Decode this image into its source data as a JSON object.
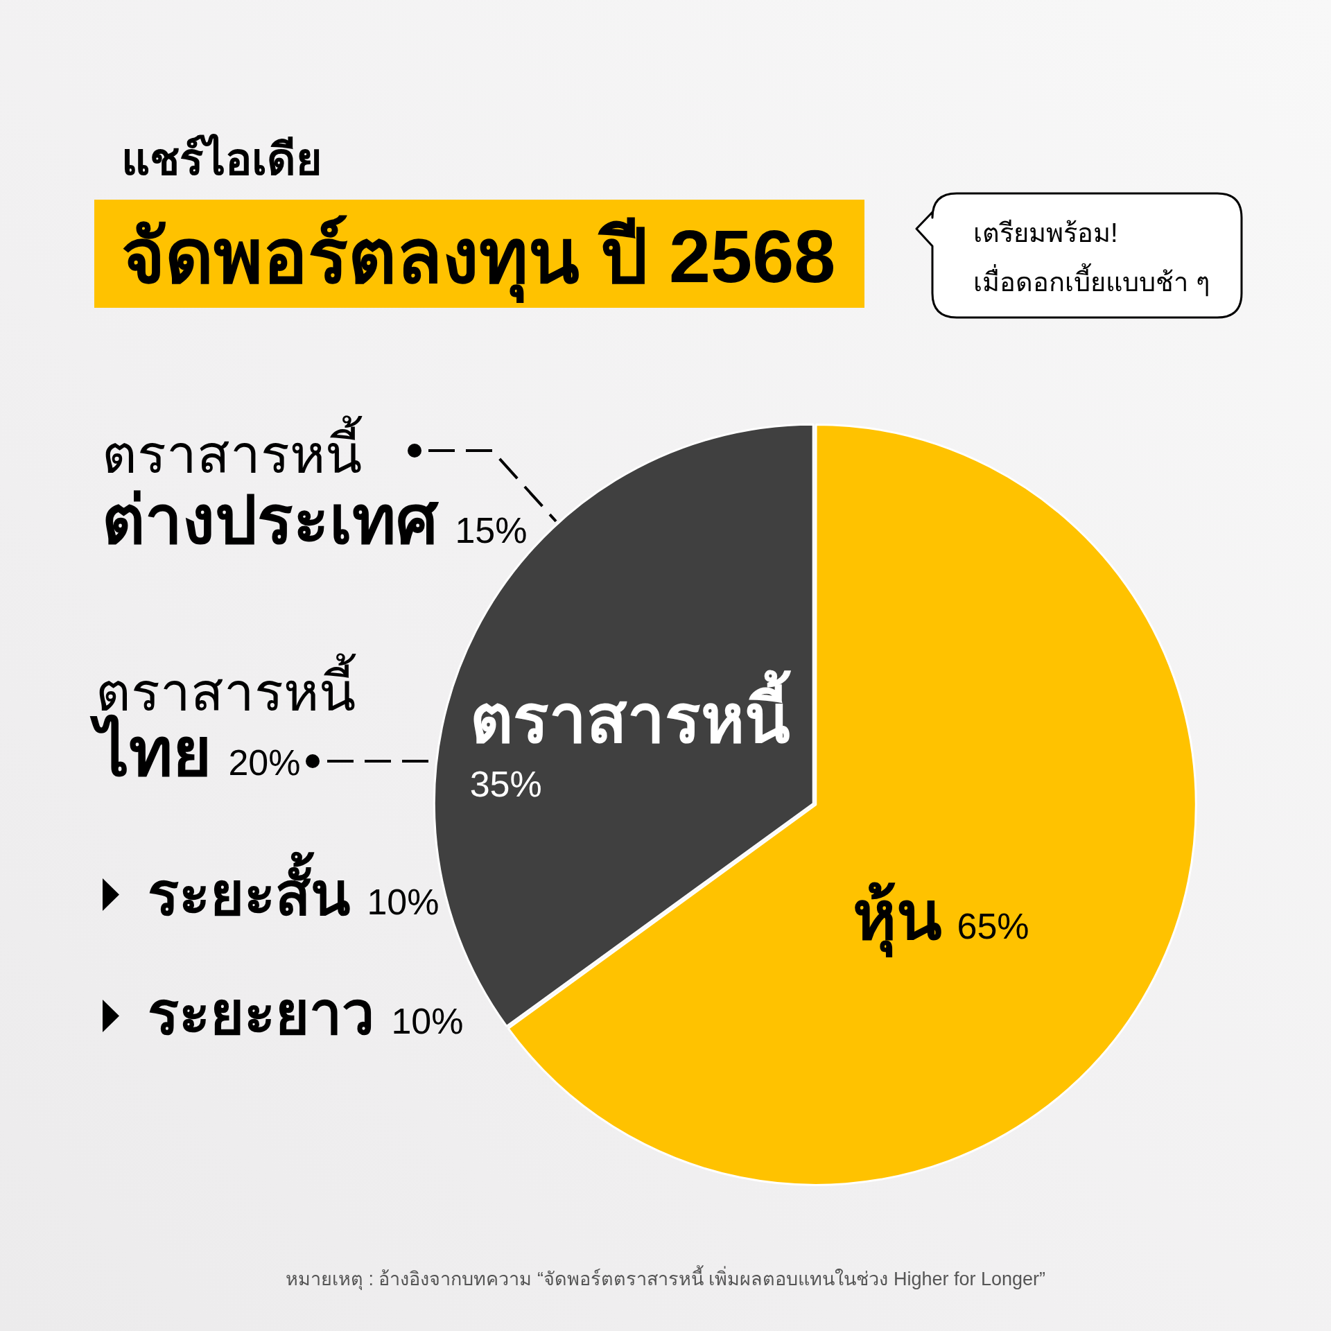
{
  "chart_data": {
    "type": "pie",
    "title": "จัดพอร์ตลงทุน ปี 2568",
    "subtitle": "แชร์ไอเดีย",
    "categories": [
      "หุ้น",
      "ตราสารหนี้"
    ],
    "values": [
      65,
      35
    ],
    "colors": [
      "#ffc200",
      "#404040"
    ],
    "value_labels": [
      "65%",
      "35%"
    ],
    "legend": false,
    "annotations": [
      "เตรียมพร้อม!\nเมื่อดอกเบี้ยแบบช้า ๆ",
      "ตราสารหนี้\nต่างประเทศ 15%",
      "ตราสารหนี้\nไทย 20%",
      "ระยะสั้น 10%",
      "ระยะยาว 10%",
      "หมายเหตุ : อ้างอิงจากบทความ “จัดพอร์ตตราสารหนี้ เพิ่มผลตอบแทนในช่วง Higher for Longer”"
    ]
  }
}
